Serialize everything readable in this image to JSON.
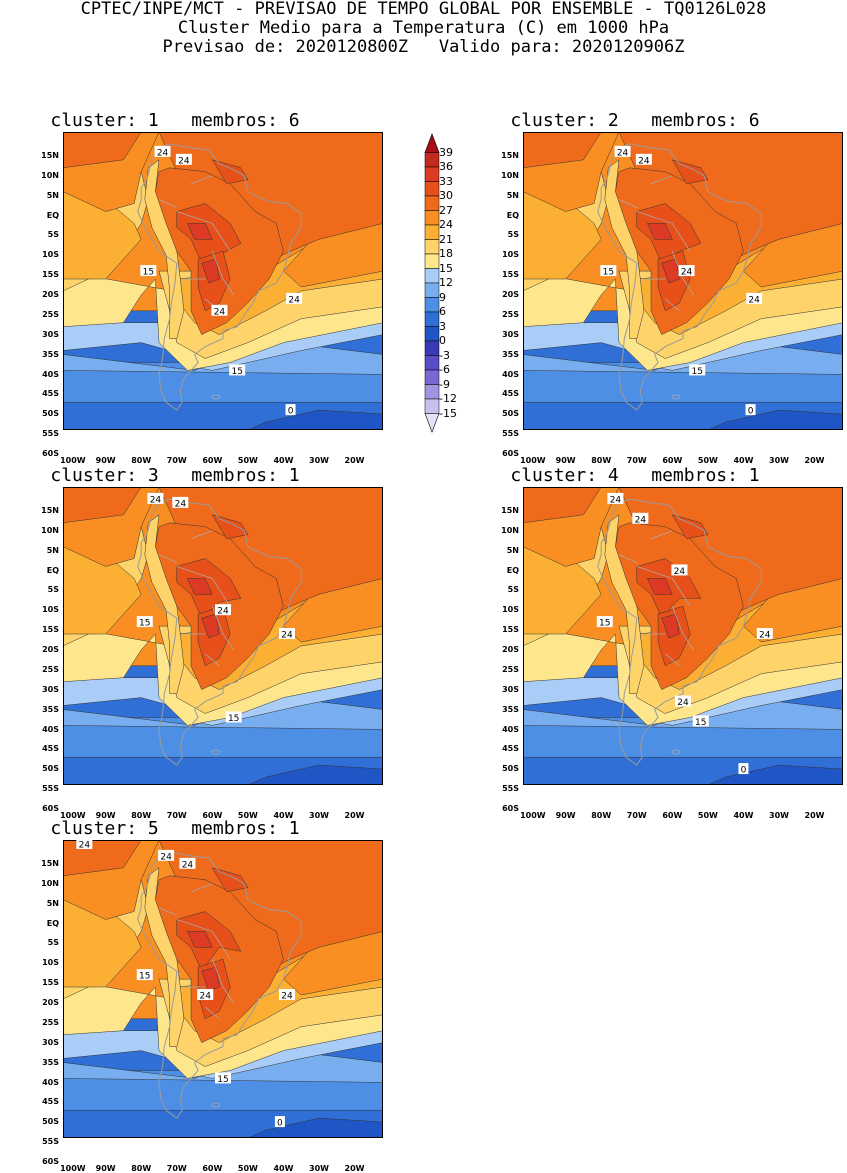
{
  "header": {
    "line1": "CPTEC/INPE/MCT - PREVISAO DE TEMPO GLOBAL POR ENSEMBLE - TQ0126L028",
    "line2": "Cluster Medio para a Temperatura (C) em 1000 hPa",
    "line3": "Previsao de: 2020120800Z   Valido para: 2020120906Z"
  },
  "axes": {
    "lat_ticks": [
      "15N",
      "10N",
      "5N",
      "EQ",
      "5S",
      "10S",
      "15S",
      "20S",
      "25S",
      "30S",
      "35S",
      "40S",
      "45S",
      "50S",
      "55S",
      "60S"
    ],
    "lon_ticks": [
      "100W",
      "90W",
      "80W",
      "70W",
      "60W",
      "50W",
      "40W",
      "30W",
      "20W"
    ]
  },
  "legend": {
    "levels": [
      "39",
      "36",
      "33",
      "30",
      "27",
      "24",
      "21",
      "18",
      "15",
      "12",
      "9",
      "6",
      "3",
      "0",
      "-3",
      "-6",
      "-9",
      "-12",
      "-15"
    ],
    "colors": [
      "#a50f15",
      "#c42a1e",
      "#dd3a26",
      "#e8501a",
      "#f06a1c",
      "#f98f22",
      "#fbb034",
      "#fdd36a",
      "#fde68c",
      "#a9cdf6",
      "#78aef0",
      "#4e8fe6",
      "#2f6fd6",
      "#1f55c4",
      "#3a3ab8",
      "#5a4cc6",
      "#7a68d2",
      "#a493e0",
      "#cbbff0",
      "#e6e1f8"
    ]
  },
  "clusters": [
    {
      "title": "cluster: 1   membros: 6",
      "labels": [
        "24",
        "24",
        "15",
        "24",
        "24",
        "15",
        "0"
      ]
    },
    {
      "title": "cluster: 2   membros: 6",
      "labels": [
        "24",
        "24",
        "15",
        "24",
        "24",
        "15",
        "0"
      ]
    },
    {
      "title": "cluster: 3   membros: 1",
      "labels": [
        "24",
        "24",
        "15",
        "24",
        "24",
        "15"
      ]
    },
    {
      "title": "cluster: 4   membros: 1",
      "labels": [
        "24",
        "24",
        "15",
        "24",
        "24",
        "24",
        "15",
        "0"
      ]
    },
    {
      "title": "cluster: 5   membros: 1",
      "labels": [
        "24",
        "24",
        "24",
        "15",
        "24",
        "24",
        "15",
        "0"
      ]
    }
  ]
}
